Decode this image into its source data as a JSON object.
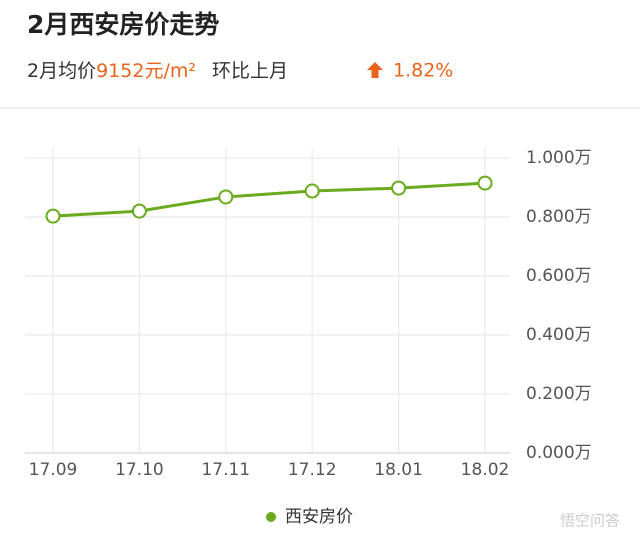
{
  "header": {
    "title": "2月西安房价走势",
    "avg_label": "2月均价",
    "avg_value": "9152元/m²",
    "mom_label": "环比上月",
    "mom_value": "1.82%"
  },
  "chart_data": {
    "type": "line",
    "categories": [
      "17.09",
      "17.10",
      "17.11",
      "17.12",
      "18.01",
      "18.02"
    ],
    "series": [
      {
        "name": "西安房价",
        "color": "#6aaa1e",
        "values": [
          0.803,
          0.82,
          0.868,
          0.888,
          0.898,
          0.915
        ]
      }
    ],
    "ylim": [
      0,
      1
    ],
    "yticks": [
      {
        "value": 0,
        "label": "0.000万"
      },
      {
        "value": 0.2,
        "label": "0.200万"
      },
      {
        "value": 0.4,
        "label": "0.400万"
      },
      {
        "value": 0.6,
        "label": "0.600万"
      },
      {
        "value": 0.8,
        "label": "0.800万"
      },
      {
        "value": 1,
        "label": "1.000万"
      }
    ],
    "grid": true,
    "legend": "bottom"
  },
  "watermark": "悟空问答"
}
